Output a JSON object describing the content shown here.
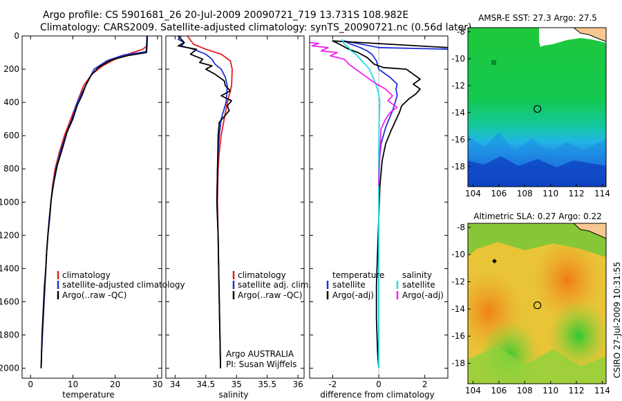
{
  "figure": {
    "title_line1": "Argo profile: CS 5901681_26 20-Jul-2009 20090721_719 13.731S 108.982E",
    "title_line2": "Climatology: CARS2009. Satellite-adjusted climatology: synTS_20090721.nc (0.56d later)",
    "credit": "CSIRO 27-Jul-2009 10:31:55"
  },
  "colors": {
    "climatology": "#e31a1c",
    "satellite": "#1f2fd6",
    "argo": "#000000",
    "sat_salt": "#22e0e0",
    "argo_salt": "#ee22ee"
  },
  "chart_data": [
    {
      "type": "line",
      "title": "",
      "xlabel": "temperature",
      "ylabel": "",
      "xlim": [
        -2,
        31
      ],
      "ylim": [
        2060,
        0
      ],
      "xticks": [
        "0",
        "10",
        "20",
        "30"
      ],
      "yticks": [
        "0",
        "200",
        "400",
        "600",
        "800",
        "1000",
        "1200",
        "1400",
        "1600",
        "1800",
        "2000"
      ],
      "legend": [
        "climatology",
        "satellite-adjusted climatology",
        "Argo(..raw -QC)"
      ],
      "series": [
        {
          "name": "climatology",
          "color": "#e31a1c",
          "points": [
            [
              27.6,
              50
            ],
            [
              27.5,
              60
            ],
            [
              26.5,
              80
            ],
            [
              23,
              110
            ],
            [
              20,
              140
            ],
            [
              17,
              180
            ],
            [
              14.5,
              230
            ],
            [
              12.5,
              300
            ],
            [
              11,
              400
            ],
            [
              9.5,
              500
            ],
            [
              8,
              600
            ],
            [
              6.8,
              700
            ],
            [
              5.8,
              800
            ],
            [
              5.2,
              900
            ],
            [
              4.8,
              1000
            ],
            [
              4.4,
              1100
            ],
            [
              4.1,
              1200
            ],
            [
              3.8,
              1300
            ],
            [
              3.6,
              1400
            ],
            [
              3.4,
              1500
            ],
            [
              3.2,
              1600
            ],
            [
              3,
              1700
            ],
            [
              2.8,
              1800
            ],
            [
              2.6,
              1900
            ],
            [
              2.5,
              2000
            ]
          ]
        },
        {
          "name": "satellite",
          "color": "#1f2fd6",
          "points": [
            [
              27.5,
              0
            ],
            [
              27.4,
              60
            ],
            [
              27.3,
              95
            ],
            [
              22,
              115
            ],
            [
              18,
              150
            ],
            [
              15,
              200
            ],
            [
              13,
              300
            ],
            [
              11,
              400
            ],
            [
              9.8,
              500
            ],
            [
              8.3,
              600
            ],
            [
              7,
              700
            ],
            [
              6,
              800
            ],
            [
              5.3,
              900
            ],
            [
              4.8,
              1000
            ],
            [
              4.4,
              1100
            ],
            [
              4.1,
              1200
            ],
            [
              3.8,
              1300
            ],
            [
              3.6,
              1400
            ],
            [
              3.4,
              1500
            ],
            [
              3.2,
              1600
            ],
            [
              3,
              1700
            ],
            [
              2.8,
              1800
            ],
            [
              2.6,
              1900
            ],
            [
              2.5,
              2000
            ]
          ]
        },
        {
          "name": "Argo",
          "color": "#000000",
          "points": [
            [
              27.6,
              0
            ],
            [
              27.5,
              60
            ],
            [
              27.4,
              100
            ],
            [
              23,
              118
            ],
            [
              19,
              145
            ],
            [
              16,
              190
            ],
            [
              14.2,
              240
            ],
            [
              13,
              300
            ],
            [
              12.3,
              350
            ],
            [
              11,
              420
            ],
            [
              10,
              500
            ],
            [
              8.6,
              580
            ],
            [
              7.5,
              680
            ],
            [
              6.3,
              780
            ],
            [
              5.5,
              880
            ],
            [
              4.9,
              980
            ],
            [
              4.5,
              1100
            ],
            [
              4.1,
              1200
            ],
            [
              3.8,
              1300
            ],
            [
              3.6,
              1400
            ],
            [
              3.3,
              1500
            ],
            [
              3.1,
              1600
            ],
            [
              2.9,
              1700
            ],
            [
              2.7,
              1800
            ],
            [
              2.6,
              1900
            ],
            [
              2.5,
              2000
            ]
          ]
        }
      ]
    },
    {
      "type": "line",
      "title": "",
      "xlabel": "salinity",
      "ylabel": "",
      "xlim": [
        33.85,
        36.1
      ],
      "ylim": [
        2060,
        0
      ],
      "xticks": [
        "34",
        "34.5",
        "35",
        "35.5",
        "36"
      ],
      "legend": [
        "climatology",
        "satellite adj. clim.",
        "Argo(..raw -QC)"
      ],
      "annotation": [
        "Argo AUSTRALIA",
        "PI: Susan Wijffels"
      ],
      "series": [
        {
          "name": "climatology",
          "color": "#e31a1c",
          "points": [
            [
              34.2,
              0
            ],
            [
              34.3,
              50
            ],
            [
              34.5,
              80
            ],
            [
              34.75,
              110
            ],
            [
              34.9,
              150
            ],
            [
              34.93,
              200
            ],
            [
              34.92,
              300
            ],
            [
              34.85,
              400
            ],
            [
              34.8,
              500
            ],
            [
              34.75,
              600
            ],
            [
              34.72,
              700
            ],
            [
              34.7,
              800
            ],
            [
              34.69,
              1000
            ],
            [
              34.7,
              1200
            ],
            [
              34.71,
              1400
            ],
            [
              34.72,
              1600
            ],
            [
              34.73,
              1800
            ],
            [
              34.74,
              2000
            ]
          ]
        },
        {
          "name": "satellite",
          "color": "#1f2fd6",
          "points": [
            [
              34.1,
              0
            ],
            [
              34.05,
              20
            ],
            [
              34.15,
              40
            ],
            [
              34.1,
              60
            ],
            [
              34.3,
              80
            ],
            [
              34.5,
              110
            ],
            [
              34.6,
              140
            ],
            [
              34.65,
              170
            ],
            [
              34.75,
              200
            ],
            [
              34.82,
              250
            ],
            [
              34.85,
              300
            ],
            [
              34.83,
              400
            ],
            [
              34.75,
              500
            ],
            [
              34.72,
              600
            ],
            [
              34.7,
              700
            ],
            [
              34.69,
              800
            ],
            [
              34.68,
              1000
            ],
            [
              34.7,
              1200
            ],
            [
              34.71,
              1400
            ],
            [
              34.72,
              1600
            ],
            [
              34.73,
              1800
            ],
            [
              34.74,
              2000
            ]
          ]
        },
        {
          "name": "Argo",
          "color": "#000000",
          "points": [
            [
              34.05,
              0
            ],
            [
              34.1,
              20
            ],
            [
              34.15,
              40
            ],
            [
              34.05,
              60
            ],
            [
              34.35,
              80
            ],
            [
              34.25,
              110
            ],
            [
              34.45,
              140
            ],
            [
              34.4,
              160
            ],
            [
              34.6,
              180
            ],
            [
              34.5,
              200
            ],
            [
              34.65,
              230
            ],
            [
              34.8,
              270
            ],
            [
              34.82,
              300
            ],
            [
              34.9,
              330
            ],
            [
              34.75,
              360
            ],
            [
              34.92,
              390
            ],
            [
              34.85,
              420
            ],
            [
              34.88,
              450
            ],
            [
              34.72,
              520
            ],
            [
              34.7,
              600
            ],
            [
              34.69,
              800
            ],
            [
              34.68,
              1000
            ],
            [
              34.7,
              1200
            ],
            [
              34.71,
              1400
            ],
            [
              34.72,
              1600
            ],
            [
              34.73,
              1800
            ],
            [
              34.74,
              2000
            ]
          ]
        }
      ]
    },
    {
      "type": "line",
      "title": "",
      "xlabel": "difference from climatology",
      "ylabel": "",
      "xlim": [
        -3,
        3
      ],
      "ylim": [
        2060,
        0
      ],
      "xticks": [
        "-2",
        "0",
        "2"
      ],
      "legend": [
        "temperature",
        "satellite",
        "Argo(-adj)",
        "salinity",
        "satellite",
        "Argo(-adj)"
      ],
      "series": [
        {
          "name": "temperature satellite",
          "color": "#1f2fd6",
          "points": [
            [
              3,
              80
            ],
            [
              0,
              70
            ],
            [
              -1.5,
              30
            ],
            [
              -1.2,
              50
            ],
            [
              -0.8,
              70
            ],
            [
              -0.5,
              90
            ],
            [
              -0.3,
              110
            ],
            [
              -0.1,
              150
            ],
            [
              0,
              200
            ],
            [
              0.5,
              250
            ],
            [
              0.8,
              290
            ],
            [
              0.75,
              320
            ],
            [
              0.8,
              360
            ],
            [
              0.6,
              450
            ],
            [
              0.3,
              550
            ],
            [
              0.1,
              650
            ],
            [
              0,
              800
            ],
            [
              0,
              1000
            ],
            [
              0,
              1200
            ],
            [
              0,
              1400
            ],
            [
              0,
              1600
            ],
            [
              0,
              1800
            ],
            [
              0,
              2000
            ]
          ]
        },
        {
          "name": "temperature Argo",
          "color": "#000000",
          "points": [
            [
              3,
              70
            ],
            [
              -2,
              30
            ],
            [
              -1.7,
              50
            ],
            [
              -1.3,
              80
            ],
            [
              -0.9,
              100
            ],
            [
              -0.5,
              130
            ],
            [
              -0.2,
              170
            ],
            [
              0.2,
              190
            ],
            [
              1.2,
              200
            ],
            [
              1.5,
              230
            ],
            [
              1.8,
              260
            ],
            [
              1.5,
              290
            ],
            [
              1.8,
              320
            ],
            [
              1.6,
              350
            ],
            [
              1.3,
              380
            ],
            [
              1.0,
              420
            ],
            [
              0.9,
              460
            ],
            [
              0.7,
              520
            ],
            [
              0.5,
              580
            ],
            [
              0.3,
              650
            ],
            [
              0.15,
              750
            ],
            [
              0.05,
              900
            ],
            [
              0,
              1100
            ],
            [
              -0.05,
              1300
            ],
            [
              -0.1,
              1500
            ],
            [
              -0.1,
              1700
            ],
            [
              -0.05,
              1900
            ],
            [
              0,
              2000
            ]
          ]
        },
        {
          "name": "salinity satellite",
          "color": "#22e0e0",
          "points": [
            [
              -1.6,
              20
            ],
            [
              -1.5,
              50
            ],
            [
              -1.3,
              70
            ],
            [
              -1.2,
              90
            ],
            [
              -1.0,
              110
            ],
            [
              -0.8,
              140
            ],
            [
              -0.6,
              170
            ],
            [
              -0.4,
              200
            ],
            [
              -0.25,
              250
            ],
            [
              -0.1,
              300
            ],
            [
              0,
              350
            ],
            [
              0.05,
              400
            ],
            [
              0.02,
              500
            ],
            [
              0,
              700
            ],
            [
              0,
              1000
            ],
            [
              0,
              1400
            ],
            [
              0,
              1800
            ],
            [
              0,
              2000
            ]
          ]
        },
        {
          "name": "salinity Argo",
          "color": "#ee22ee",
          "points": [
            [
              -3,
              40
            ],
            [
              -2.6,
              45
            ],
            [
              -2.9,
              60
            ],
            [
              -2.2,
              70
            ],
            [
              -2.5,
              90
            ],
            [
              -1.8,
              100
            ],
            [
              -2.1,
              120
            ],
            [
              -1.5,
              140
            ],
            [
              -1.3,
              170
            ],
            [
              -1.0,
              200
            ],
            [
              -0.6,
              240
            ],
            [
              -0.2,
              280
            ],
            [
              0.3,
              320
            ],
            [
              0.6,
              360
            ],
            [
              0.4,
              390
            ],
            [
              0.8,
              430
            ],
            [
              0.5,
              460
            ],
            [
              0.3,
              500
            ],
            [
              0.1,
              560
            ],
            [
              0.05,
              700
            ],
            [
              0,
              900
            ]
          ]
        }
      ]
    },
    {
      "type": "heatmap",
      "title": "AMSR-E SST: 27.3 Argo: 27.5",
      "xticks": [
        "104",
        "106",
        "108",
        "110",
        "112",
        "114"
      ],
      "yticks": [
        "-8",
        "-10",
        "-12",
        "-14",
        "-16",
        "-18"
      ],
      "xlim": [
        103.6,
        114.3
      ],
      "ylim": [
        -19.5,
        -7.7
      ],
      "marker": {
        "lon": 108.982,
        "lat": -13.731
      }
    },
    {
      "type": "heatmap",
      "title": "Altimetric SLA: 0.27 Argo: 0.22",
      "xticks": [
        "104",
        "106",
        "108",
        "110",
        "112",
        "114"
      ],
      "yticks": [
        "-8",
        "-10",
        "-12",
        "-14",
        "-16",
        "-18"
      ],
      "xlim": [
        103.6,
        114.3
      ],
      "ylim": [
        -19.5,
        -7.7
      ],
      "marker": {
        "lon": 108.982,
        "lat": -13.731
      }
    }
  ]
}
